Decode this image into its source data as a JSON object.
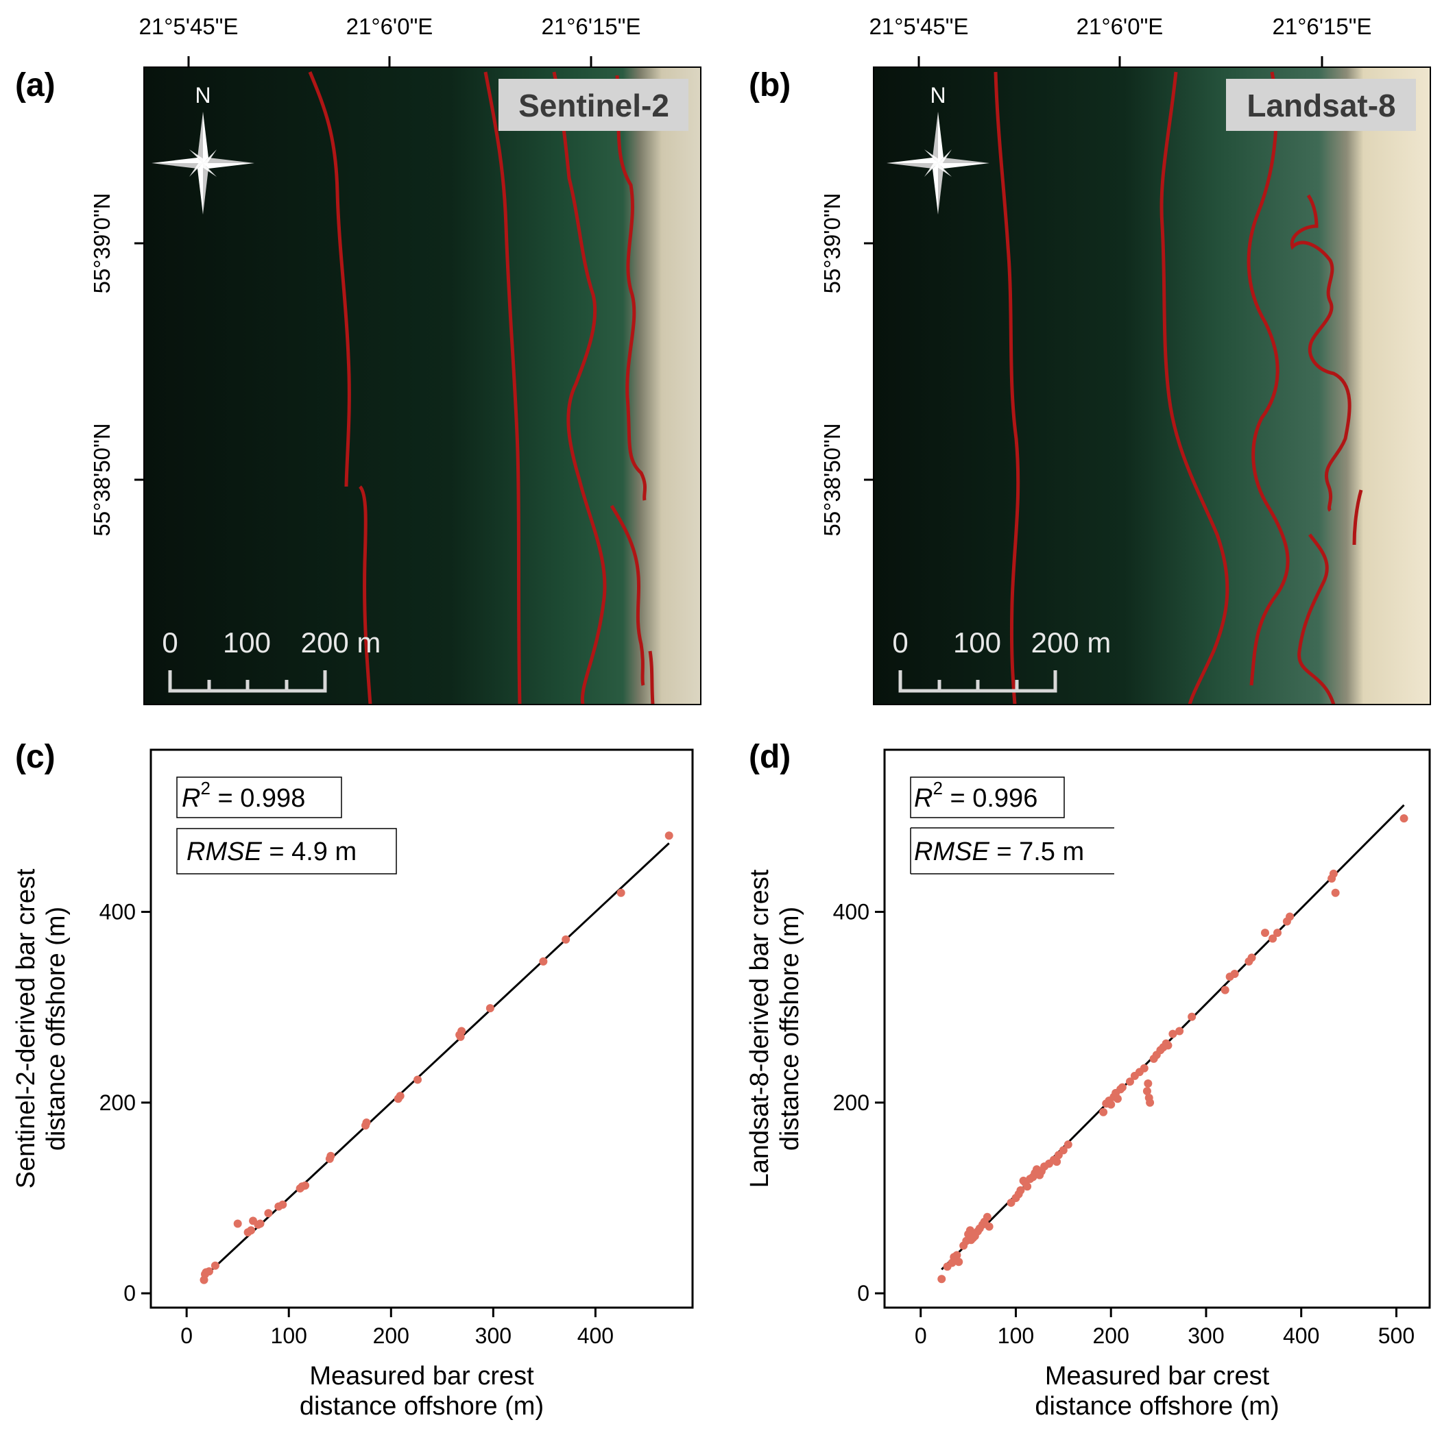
{
  "panels": {
    "a": {
      "letter": "(a)",
      "sensor": "Sentinel-2"
    },
    "b": {
      "letter": "(b)",
      "sensor": "Landsat-8"
    },
    "c": {
      "letter": "(c)"
    },
    "d": {
      "letter": "(d)"
    }
  },
  "map": {
    "lon_ticks": [
      "21°5'45\"E",
      "21°6'0\"E",
      "21°6'15\"E"
    ],
    "lat_ticks": [
      "55°39'0\"N",
      "55°38'50\"N"
    ],
    "north_label": "N",
    "scale_labels": [
      "0",
      "100",
      "200 m"
    ],
    "colors": {
      "water_deep": "#0c1a12",
      "water_shallow": "#22543a",
      "beach": "#d8d2bd",
      "bar_line": "#b01515"
    }
  },
  "chart_data": [
    {
      "type": "scatter",
      "panel": "(c)",
      "xlabel": [
        "Measured bar crest",
        "distance offshore (m)"
      ],
      "ylabel": [
        "Sentinel-2-derived bar crest",
        "distance offshore (m)"
      ],
      "xlim": [
        -35,
        495
      ],
      "ylim": [
        -15,
        570
      ],
      "xticks": [
        0,
        100,
        200,
        300,
        400
      ],
      "yticks": [
        0,
        200,
        400
      ],
      "stats": {
        "r2_label": "R",
        "r2_sup": "2",
        "r2_value": " = 0.998",
        "rmse_label": "RMSE",
        "rmse_value": " = 4.9 m"
      },
      "fit_line": {
        "x": [
          18,
          472
        ],
        "y": [
          18,
          472
        ]
      },
      "points_color": "#e07060",
      "points": [
        [
          17,
          14
        ],
        [
          18,
          20
        ],
        [
          19,
          22
        ],
        [
          22,
          23
        ],
        [
          28,
          29
        ],
        [
          50,
          73
        ],
        [
          60,
          64
        ],
        [
          63,
          66
        ],
        [
          65,
          76
        ],
        [
          70,
          72
        ],
        [
          72,
          73
        ],
        [
          80,
          84
        ],
        [
          90,
          91
        ],
        [
          94,
          93
        ],
        [
          111,
          110
        ],
        [
          113,
          112
        ],
        [
          116,
          113
        ],
        [
          140,
          141
        ],
        [
          141,
          144
        ],
        [
          175,
          176
        ],
        [
          176,
          179
        ],
        [
          207,
          204
        ],
        [
          209,
          207
        ],
        [
          226,
          224
        ],
        [
          267,
          271
        ],
        [
          269,
          275
        ],
        [
          268,
          269
        ],
        [
          297,
          299
        ],
        [
          349,
          348
        ],
        [
          371,
          371
        ],
        [
          425,
          420
        ],
        [
          472,
          480
        ]
      ]
    },
    {
      "type": "scatter",
      "panel": "(d)",
      "xlabel": [
        "Measured bar crest",
        "distance offshore (m)"
      ],
      "ylabel": [
        "Landsat-8-derived bar crest",
        "distance offshore (m)"
      ],
      "xlim": [
        -38,
        535
      ],
      "ylim": [
        -15,
        570
      ],
      "xticks": [
        0,
        100,
        200,
        300,
        400,
        500
      ],
      "yticks": [
        0,
        200,
        400
      ],
      "stats": {
        "r2_label": "R",
        "r2_sup": "2",
        "r2_value": " = 0.996",
        "rmse_label": "RMSE",
        "rmse_value": " = 7.5 m"
      },
      "fit_line": {
        "x": [
          22,
          508
        ],
        "y": [
          25,
          512
        ]
      },
      "points_color": "#e07060",
      "points": [
        [
          22,
          15
        ],
        [
          28,
          28
        ],
        [
          33,
          32
        ],
        [
          35,
          38
        ],
        [
          38,
          40
        ],
        [
          40,
          33
        ],
        [
          45,
          50
        ],
        [
          48,
          55
        ],
        [
          50,
          62
        ],
        [
          52,
          66
        ],
        [
          53,
          56
        ],
        [
          55,
          58
        ],
        [
          57,
          60
        ],
        [
          60,
          65
        ],
        [
          62,
          68
        ],
        [
          65,
          72
        ],
        [
          67,
          75
        ],
        [
          70,
          80
        ],
        [
          72,
          70
        ],
        [
          95,
          95
        ],
        [
          100,
          100
        ],
        [
          103,
          104
        ],
        [
          105,
          108
        ],
        [
          108,
          118
        ],
        [
          110,
          116
        ],
        [
          112,
          112
        ],
        [
          115,
          120
        ],
        [
          118,
          122
        ],
        [
          120,
          126
        ],
        [
          122,
          130
        ],
        [
          125,
          124
        ],
        [
          127,
          128
        ],
        [
          130,
          133
        ],
        [
          135,
          136
        ],
        [
          140,
          140
        ],
        [
          143,
          138
        ],
        [
          145,
          145
        ],
        [
          150,
          150
        ],
        [
          155,
          156
        ],
        [
          192,
          190
        ],
        [
          195,
          199
        ],
        [
          198,
          202
        ],
        [
          200,
          198
        ],
        [
          203,
          206
        ],
        [
          205,
          210
        ],
        [
          207,
          204
        ],
        [
          210,
          214
        ],
        [
          212,
          216
        ],
        [
          220,
          222
        ],
        [
          225,
          228
        ],
        [
          230,
          232
        ],
        [
          235,
          236
        ],
        [
          238,
          212
        ],
        [
          239,
          220
        ],
        [
          240,
          205
        ],
        [
          241,
          200
        ],
        [
          245,
          246
        ],
        [
          248,
          250
        ],
        [
          252,
          255
        ],
        [
          255,
          258
        ],
        [
          258,
          262
        ],
        [
          260,
          260
        ],
        [
          265,
          272
        ],
        [
          272,
          275
        ],
        [
          285,
          290
        ],
        [
          320,
          318
        ],
        [
          325,
          332
        ],
        [
          330,
          335
        ],
        [
          345,
          348
        ],
        [
          348,
          352
        ],
        [
          362,
          378
        ],
        [
          370,
          372
        ],
        [
          375,
          378
        ],
        [
          385,
          390
        ],
        [
          388,
          395
        ],
        [
          432,
          435
        ],
        [
          434,
          440
        ],
        [
          436,
          420
        ],
        [
          508,
          498
        ]
      ]
    }
  ]
}
